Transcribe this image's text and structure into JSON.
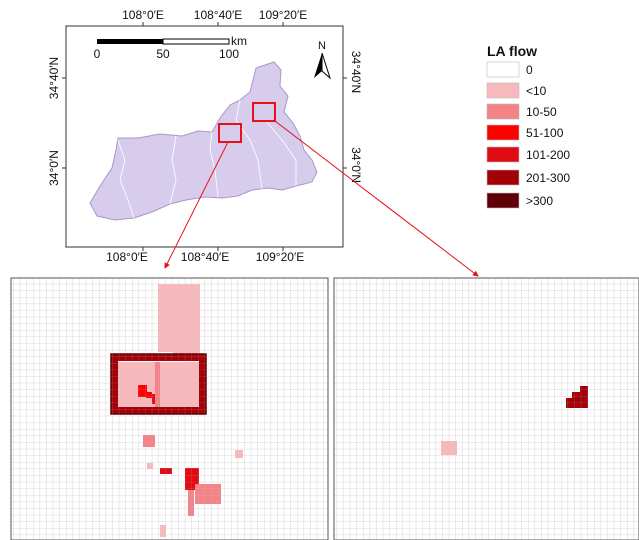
{
  "map": {
    "top_ticks": [
      "108°0′E",
      "108°40′E",
      "109°20′E"
    ],
    "bottom_ticks": [
      "108°0′E",
      "108°40′E",
      "109°20′E"
    ],
    "left_ticks": [
      "34°40′N",
      "34°0′N"
    ],
    "right_ticks": [
      "34°40′N",
      "34°0′N"
    ],
    "scale_labels": [
      "0",
      "50",
      "100"
    ],
    "scale_unit": "km",
    "north_label": "N",
    "fill_color": "#d8ccec",
    "highlight_color": "#e8101a"
  },
  "legend": {
    "title": "LA flow",
    "items": [
      {
        "label": "0",
        "color": "#ffffff"
      },
      {
        "label": "<10",
        "color": "#f8b9bc"
      },
      {
        "label": "10-50",
        "color": "#f38387"
      },
      {
        "label": "51-100",
        "color": "#ff0000"
      },
      {
        "label": "101-200",
        "color": "#e00a12"
      },
      {
        "label": "201-300",
        "color": "#a30008"
      },
      {
        "label": ">300",
        "color": "#5e0006"
      }
    ]
  }
}
